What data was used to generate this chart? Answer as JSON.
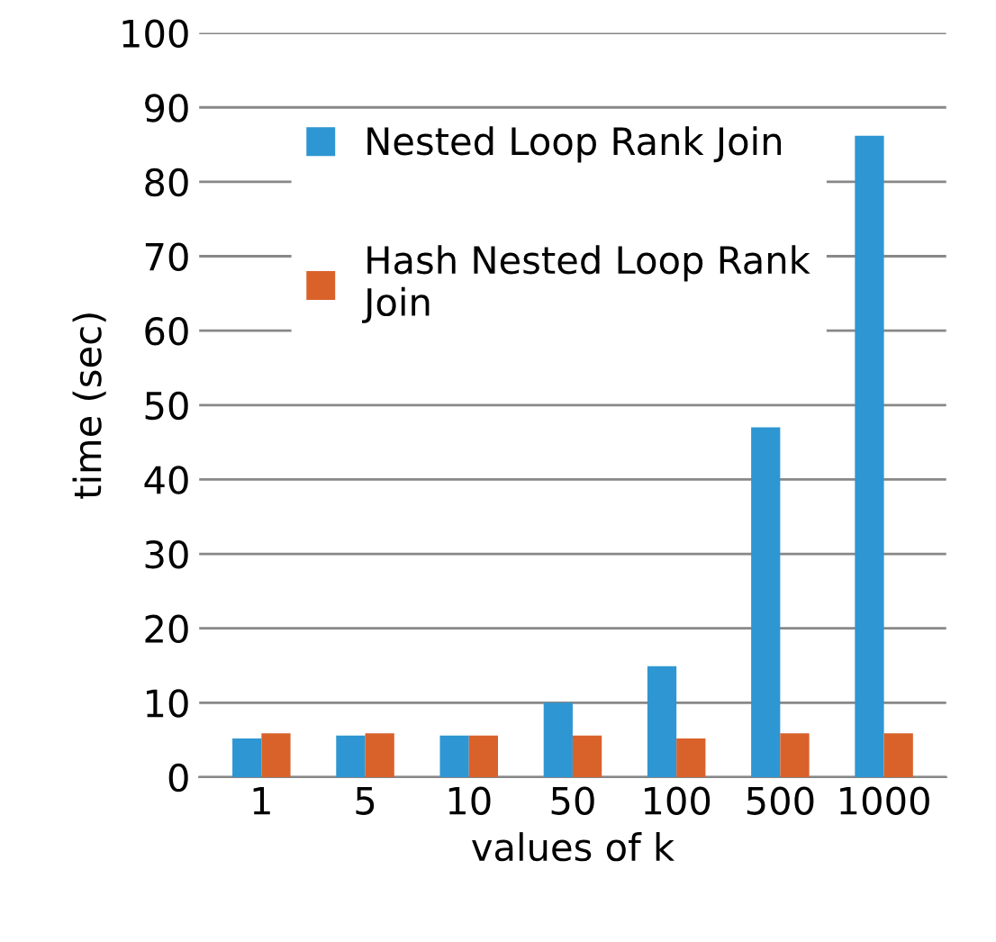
{
  "chart_data": {
    "type": "bar",
    "xlabel": "values of k",
    "ylabel": "time (sec)",
    "categories": [
      "1",
      "5",
      "10",
      "50",
      "100",
      "500",
      "1000"
    ],
    "series": [
      {
        "name": "Nested Loop Rank Join",
        "color": "#2e96d2",
        "values": [
          5.2,
          5.6,
          5.6,
          10,
          14.9,
          47,
          86.2
        ]
      },
      {
        "name": "Hash Nested Loop Rank Join",
        "color": "#d9622b",
        "values": [
          5.9,
          5.9,
          5.6,
          5.6,
          5.2,
          5.9,
          5.9
        ]
      }
    ],
    "ylim": [
      0,
      100
    ],
    "yticks": [
      0,
      10,
      20,
      30,
      40,
      50,
      60,
      70,
      80,
      90,
      100
    ],
    "grid": "y",
    "legend": "top left"
  }
}
